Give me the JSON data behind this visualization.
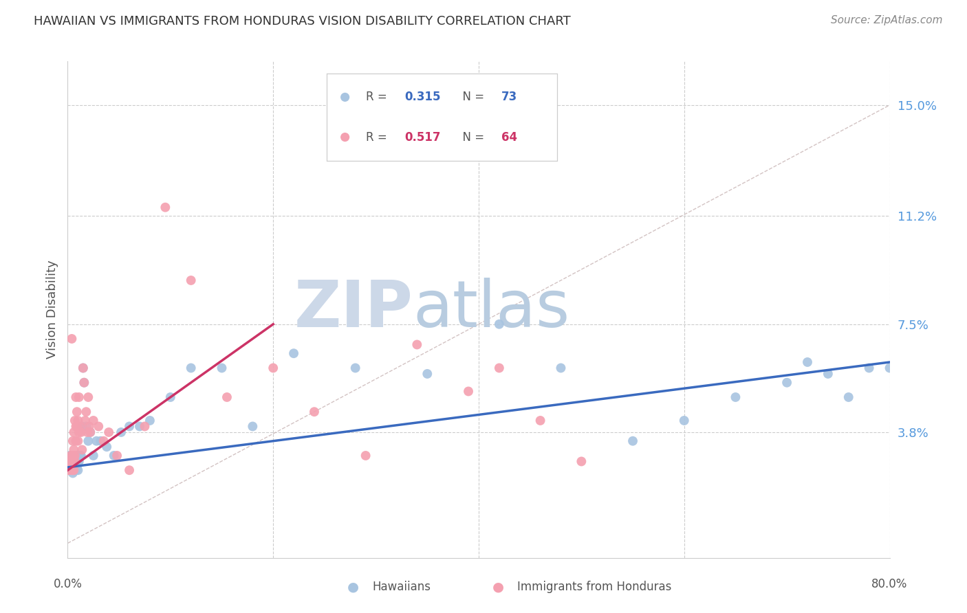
{
  "title": "HAWAIIAN VS IMMIGRANTS FROM HONDURAS VISION DISABILITY CORRELATION CHART",
  "source": "Source: ZipAtlas.com",
  "ylabel": "Vision Disability",
  "xlim": [
    0.0,
    0.8
  ],
  "ylim": [
    -0.005,
    0.165
  ],
  "right_ytick_vals": [
    0.038,
    0.075,
    0.112,
    0.15
  ],
  "right_yticklabels": [
    "3.8%",
    "7.5%",
    "11.2%",
    "15.0%"
  ],
  "hawaiians_color": "#a8c4e0",
  "honduras_color": "#f4a0b0",
  "trend_blue_color": "#3a6abf",
  "trend_pink_color": "#cc3366",
  "diagonal_color": "#c8b4b4",
  "watermark_zip_color": "#ccd8e8",
  "watermark_atlas_color": "#b8cce0",
  "background_color": "#ffffff",
  "grid_color": "#cccccc",
  "title_color": "#333333",
  "right_axis_color": "#5599dd",
  "hawaiians_x": [
    0.001,
    0.001,
    0.001,
    0.002,
    0.002,
    0.002,
    0.002,
    0.003,
    0.003,
    0.003,
    0.003,
    0.003,
    0.004,
    0.004,
    0.004,
    0.004,
    0.005,
    0.005,
    0.005,
    0.005,
    0.005,
    0.006,
    0.006,
    0.006,
    0.006,
    0.007,
    0.007,
    0.007,
    0.008,
    0.008,
    0.008,
    0.009,
    0.009,
    0.01,
    0.01,
    0.01,
    0.011,
    0.011,
    0.012,
    0.013,
    0.014,
    0.015,
    0.016,
    0.018,
    0.02,
    0.022,
    0.025,
    0.028,
    0.032,
    0.038,
    0.045,
    0.052,
    0.06,
    0.07,
    0.08,
    0.1,
    0.12,
    0.15,
    0.18,
    0.22,
    0.28,
    0.35,
    0.42,
    0.48,
    0.55,
    0.6,
    0.65,
    0.7,
    0.72,
    0.74,
    0.76,
    0.78,
    0.8
  ],
  "hawaiians_y": [
    0.026,
    0.028,
    0.027,
    0.026,
    0.028,
    0.025,
    0.03,
    0.026,
    0.025,
    0.028,
    0.03,
    0.027,
    0.025,
    0.028,
    0.026,
    0.03,
    0.025,
    0.027,
    0.024,
    0.03,
    0.028,
    0.025,
    0.028,
    0.03,
    0.026,
    0.025,
    0.028,
    0.026,
    0.025,
    0.028,
    0.03,
    0.026,
    0.028,
    0.025,
    0.028,
    0.03,
    0.028,
    0.03,
    0.03,
    0.03,
    0.04,
    0.06,
    0.055,
    0.04,
    0.035,
    0.038,
    0.03,
    0.035,
    0.035,
    0.033,
    0.03,
    0.038,
    0.04,
    0.04,
    0.042,
    0.05,
    0.06,
    0.06,
    0.04,
    0.065,
    0.06,
    0.058,
    0.075,
    0.06,
    0.035,
    0.042,
    0.05,
    0.055,
    0.062,
    0.058,
    0.05,
    0.06,
    0.06
  ],
  "honduras_x": [
    0.001,
    0.001,
    0.001,
    0.002,
    0.002,
    0.002,
    0.003,
    0.003,
    0.003,
    0.003,
    0.003,
    0.004,
    0.004,
    0.004,
    0.004,
    0.005,
    0.005,
    0.005,
    0.005,
    0.006,
    0.006,
    0.006,
    0.006,
    0.007,
    0.007,
    0.007,
    0.008,
    0.008,
    0.008,
    0.009,
    0.009,
    0.01,
    0.01,
    0.011,
    0.011,
    0.012,
    0.013,
    0.014,
    0.015,
    0.016,
    0.017,
    0.018,
    0.019,
    0.02,
    0.021,
    0.022,
    0.025,
    0.03,
    0.035,
    0.04,
    0.048,
    0.06,
    0.075,
    0.095,
    0.12,
    0.155,
    0.2,
    0.24,
    0.29,
    0.34,
    0.39,
    0.42,
    0.46,
    0.5
  ],
  "honduras_y": [
    0.026,
    0.025,
    0.027,
    0.026,
    0.025,
    0.028,
    0.025,
    0.026,
    0.028,
    0.03,
    0.027,
    0.026,
    0.025,
    0.028,
    0.07,
    0.025,
    0.028,
    0.03,
    0.035,
    0.025,
    0.032,
    0.038,
    0.03,
    0.042,
    0.028,
    0.03,
    0.04,
    0.035,
    0.05,
    0.045,
    0.04,
    0.035,
    0.042,
    0.038,
    0.05,
    0.04,
    0.038,
    0.032,
    0.06,
    0.055,
    0.042,
    0.045,
    0.038,
    0.05,
    0.04,
    0.038,
    0.042,
    0.04,
    0.035,
    0.038,
    0.03,
    0.025,
    0.04,
    0.115,
    0.09,
    0.05,
    0.06,
    0.045,
    0.03,
    0.068,
    0.052,
    0.06,
    0.042,
    0.028
  ],
  "honduras_trend_xrange": [
    0.0,
    0.2
  ],
  "hawaiians_trend_xrange": [
    0.0,
    0.8
  ]
}
